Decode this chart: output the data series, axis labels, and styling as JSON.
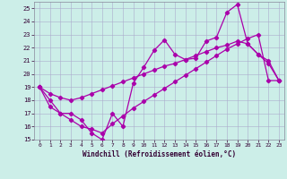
{
  "bg_color": "#cceee8",
  "grid_color": "#aaaacc",
  "line_color": "#aa00aa",
  "xlabel": "Windchill (Refroidissement éolien,°C)",
  "xlim": [
    -0.5,
    23.5
  ],
  "ylim": [
    15,
    25.5
  ],
  "xticks": [
    0,
    1,
    2,
    3,
    4,
    5,
    6,
    7,
    8,
    9,
    10,
    11,
    12,
    13,
    14,
    15,
    16,
    17,
    18,
    19,
    20,
    21,
    22,
    23
  ],
  "yticks": [
    15,
    16,
    17,
    18,
    19,
    20,
    21,
    22,
    23,
    24,
    25
  ],
  "line1_x": [
    0,
    1,
    2,
    3,
    4,
    5,
    6,
    7,
    8,
    9,
    10,
    11,
    12,
    13,
    14,
    15,
    16,
    17,
    18,
    19,
    20,
    21,
    22,
    23
  ],
  "line1_y": [
    19.0,
    18.0,
    17.0,
    17.0,
    16.5,
    15.5,
    15.0,
    17.0,
    16.0,
    19.3,
    20.5,
    21.8,
    22.6,
    21.5,
    21.1,
    21.2,
    22.5,
    22.8,
    24.7,
    25.3,
    22.3,
    21.5,
    21.0,
    19.5
  ],
  "line2_x": [
    0,
    1,
    2,
    3,
    4,
    5,
    6,
    7,
    8,
    9,
    10,
    11,
    12,
    13,
    14,
    15,
    16,
    17,
    18,
    19,
    20,
    21,
    22,
    23
  ],
  "line2_y": [
    19.0,
    18.5,
    18.2,
    18.0,
    18.2,
    18.5,
    18.8,
    19.1,
    19.4,
    19.7,
    20.0,
    20.3,
    20.6,
    20.8,
    21.1,
    21.4,
    21.7,
    22.0,
    22.2,
    22.5,
    22.3,
    21.5,
    20.8,
    19.5
  ],
  "line3_x": [
    0,
    1,
    2,
    3,
    4,
    5,
    6,
    7,
    8,
    9,
    10,
    11,
    12,
    13,
    14,
    15,
    16,
    17,
    18,
    19,
    20,
    21,
    22,
    23
  ],
  "line3_y": [
    19.0,
    17.5,
    17.0,
    16.5,
    16.0,
    15.8,
    15.5,
    16.2,
    16.8,
    17.4,
    17.9,
    18.4,
    18.9,
    19.4,
    19.9,
    20.4,
    20.9,
    21.4,
    21.9,
    22.3,
    22.7,
    23.0,
    19.5,
    19.5
  ]
}
